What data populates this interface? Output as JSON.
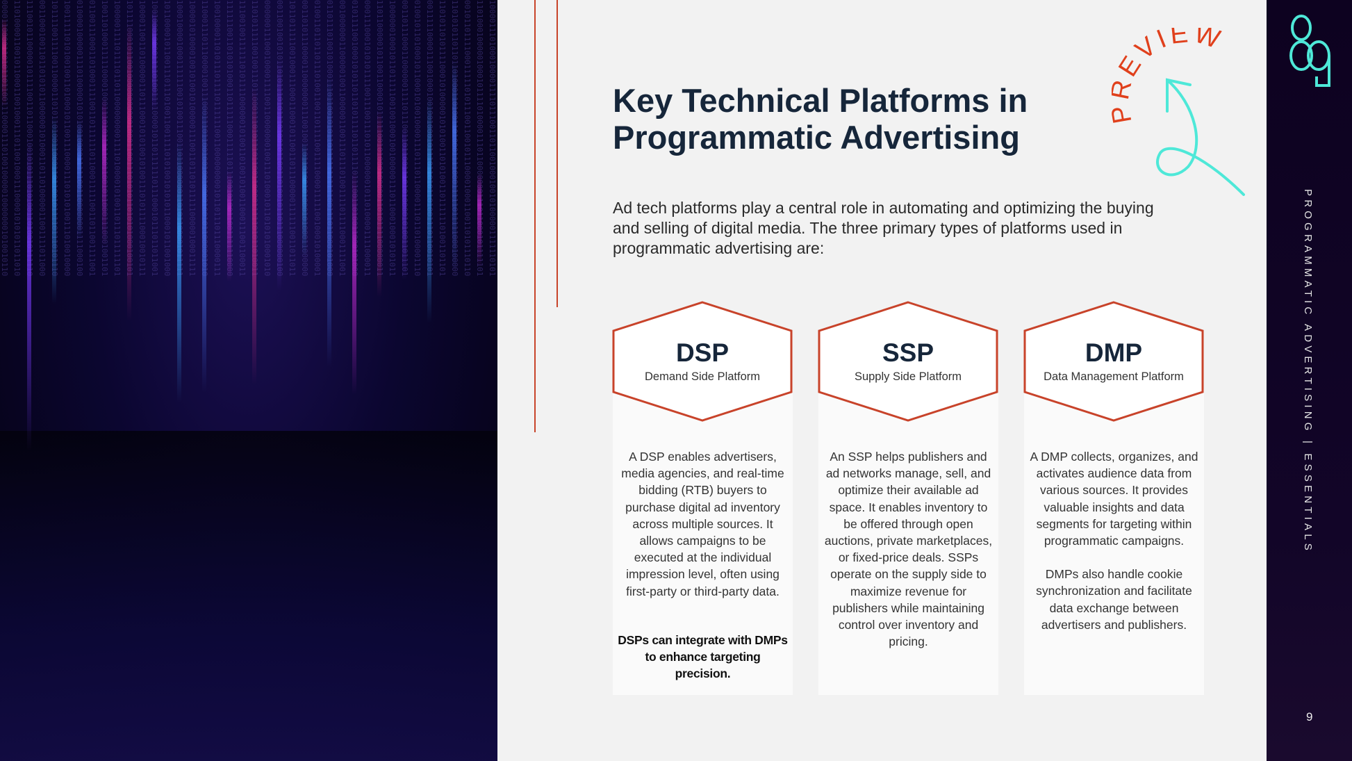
{
  "title": "Key Technical Platforms in Programmatic Advertising",
  "intro": "Ad tech platforms play a central role in automating and optimizing the buying and selling of digital media. The three primary types of platforms used in programmatic advertising are:",
  "stamp": "PREVIEW",
  "logo": "89",
  "side_text": "PROGRAMMATIC ADVERTISING | ESSENTIALS",
  "page_number": "9",
  "colors": {
    "accent": "#c8432a",
    "teal": "#4ee8d8",
    "dark": "#0d0220",
    "heading": "#16263a"
  },
  "platforms": [
    {
      "abbr": "DSP",
      "name": "Demand Side Platform",
      "paragraphs": [
        "A DSP enables advertisers, media agencies, and real-time bidding (RTB) buyers to purchase digital ad inventory across multiple sources. It allows campaigns to be executed at the individual impression level, often using first-party or third-party data."
      ],
      "note": "DSPs can integrate with DMPs to enhance targeting precision."
    },
    {
      "abbr": "SSP",
      "name": "Supply Side Platform",
      "paragraphs": [
        "An SSP helps publishers and ad networks manage, sell, and optimize their available ad space. It enables inventory to be offered through open auctions, private marketplaces, or fixed-price deals. SSPs operate on the supply side to maximize revenue for publishers while maintaining control over inventory and pricing."
      ]
    },
    {
      "abbr": "DMP",
      "name": "Data Management Platform",
      "paragraphs": [
        "A DMP collects, organizes, and activates audience data from various sources. It provides valuable insights and data segments for targeting within programmatic campaigns.",
        "DMPs also handle cookie synchronization and facilitate data exchange between advertisers and publishers."
      ]
    }
  ]
}
